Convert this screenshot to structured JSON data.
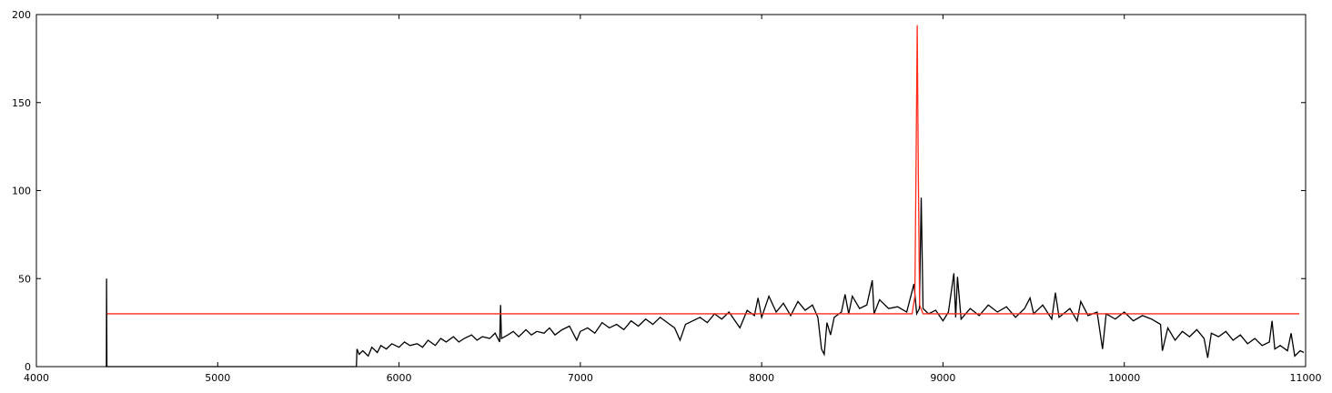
{
  "chart_data": {
    "type": "line",
    "xlim": [
      4000,
      11000
    ],
    "xticks": [
      4000,
      5000,
      6000,
      7000,
      8000,
      9000,
      10000,
      11000
    ],
    "ylim": [
      0,
      200
    ],
    "yticks": [
      0,
      50,
      100,
      150,
      200
    ],
    "grid": false,
    "series": [
      {
        "color": "#000000",
        "x": [
          4380,
          4386,
          4387,
          4389,
          5765,
          5768,
          5780,
          5800,
          5830,
          5850,
          5880,
          5900,
          5930,
          5960,
          6000,
          6030,
          6060,
          6100,
          6130,
          6160,
          6200,
          6230,
          6260,
          6300,
          6330,
          6360,
          6400,
          6430,
          6460,
          6500,
          6530,
          6555,
          6560,
          6565,
          6600,
          6630,
          6660,
          6700,
          6730,
          6760,
          6800,
          6830,
          6860,
          6900,
          6940,
          6980,
          7000,
          7040,
          7080,
          7120,
          7160,
          7200,
          7240,
          7280,
          7320,
          7360,
          7400,
          7440,
          7480,
          7520,
          7550,
          7580,
          7620,
          7660,
          7700,
          7740,
          7780,
          7820,
          7860,
          7880,
          7920,
          7960,
          7980,
          8000,
          8040,
          8080,
          8120,
          8160,
          8200,
          8240,
          8280,
          8310,
          8330,
          8345,
          8360,
          8380,
          8400,
          8440,
          8460,
          8480,
          8500,
          8540,
          8580,
          8610,
          8620,
          8650,
          8700,
          8750,
          8800,
          8840,
          8855,
          8870,
          8880,
          8890,
          8920,
          8960,
          9000,
          9030,
          9060,
          9070,
          9080,
          9100,
          9150,
          9200,
          9250,
          9300,
          9350,
          9400,
          9450,
          9480,
          9500,
          9550,
          9600,
          9620,
          9640,
          9700,
          9740,
          9760,
          9800,
          9850,
          9880,
          9900,
          9950,
          10000,
          10050,
          10100,
          10150,
          10200,
          10210,
          10240,
          10280,
          10320,
          10360,
          10400,
          10440,
          10460,
          10480,
          10520,
          10560,
          10600,
          10640,
          10680,
          10720,
          10760,
          10800,
          10815,
          10830,
          10860,
          10900,
          10920,
          10940,
          10970,
          10990
        ],
        "values": [
          0,
          0,
          50,
          0,
          0,
          10,
          7,
          9,
          6,
          11,
          8,
          12,
          10,
          13,
          11,
          14,
          12,
          13,
          11,
          15,
          12,
          16,
          14,
          17,
          14,
          16,
          18,
          15,
          17,
          16,
          19,
          14,
          35,
          16,
          18,
          20,
          17,
          21,
          18,
          20,
          19,
          22,
          18,
          21,
          23,
          15,
          20,
          22,
          19,
          25,
          22,
          24,
          21,
          26,
          23,
          27,
          24,
          28,
          25,
          22,
          15,
          24,
          26,
          28,
          25,
          30,
          27,
          31,
          25,
          22,
          32,
          29,
          39,
          28,
          40,
          31,
          36,
          29,
          37,
          32,
          35,
          28,
          10,
          7,
          25,
          18,
          28,
          31,
          41,
          30,
          40,
          33,
          35,
          49,
          30,
          38,
          33,
          34,
          31,
          47,
          30,
          33,
          96,
          33,
          30,
          32,
          26,
          31,
          53,
          28,
          51,
          27,
          33,
          29,
          35,
          31,
          34,
          28,
          33,
          39,
          30,
          35,
          27,
          42,
          28,
          33,
          26,
          37,
          29,
          31,
          10,
          30,
          27,
          31,
          26,
          29,
          27,
          24,
          9,
          22,
          15,
          20,
          17,
          21,
          16,
          5,
          19,
          17,
          20,
          15,
          18,
          13,
          16,
          12,
          14,
          26,
          10,
          12,
          9,
          19,
          6,
          9,
          8
        ]
      },
      {
        "color": "#ff2a1a",
        "x": [
          4390,
          8830,
          8845,
          8852,
          8858,
          8864,
          8871,
          8890,
          10965
        ],
        "values": [
          30,
          30,
          40,
          120,
          194,
          110,
          35,
          30,
          30
        ]
      }
    ]
  }
}
